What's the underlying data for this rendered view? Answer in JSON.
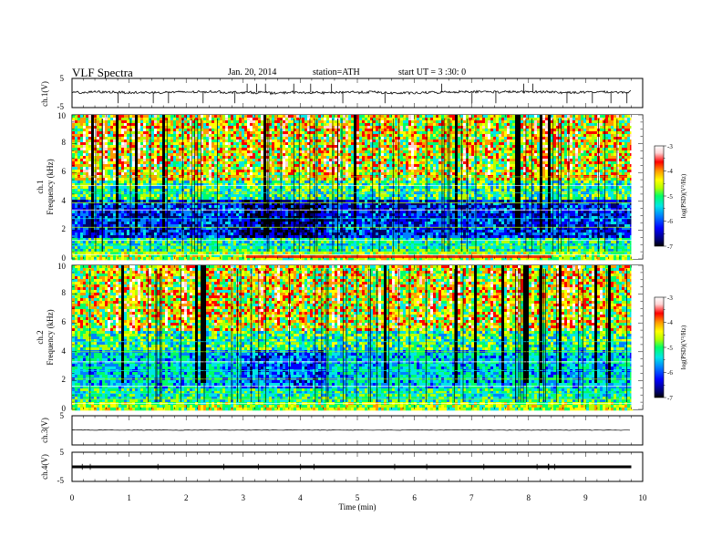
{
  "header": {
    "title": "VLF Spectra",
    "date": "Jan. 20, 2014",
    "station": "station=ATH",
    "start": "start UT =  3 :30: 0"
  },
  "colors": {
    "frame": "#000000",
    "trace": "#000000",
    "spectrogram_scale": [
      "#000000",
      "#00006e",
      "#0000ff",
      "#0080ff",
      "#00e6e6",
      "#00ff66",
      "#b4ff00",
      "#ffff00",
      "#ff9900",
      "#ff0000",
      "#ffd2d2",
      "#ffffff"
    ]
  },
  "chart_data": [
    {
      "type": "line",
      "panel": "ch1-waveform",
      "ylabel": "ch.1(V)",
      "ylim": [
        -5,
        5
      ],
      "y_ticks": [
        "5",
        "-5"
      ],
      "xlim": [
        0,
        10
      ],
      "trace_level": 0,
      "trace_extent_min": 9.8
    },
    {
      "type": "heatmap",
      "panel": "ch1-spectrogram",
      "ylabel_channel": "ch.1",
      "ylabel": "Frequency (kHz)",
      "ylim": [
        0,
        10
      ],
      "y_ticks": [
        "0",
        "2",
        "4",
        "6",
        "8",
        "10"
      ],
      "xlim": [
        0,
        10
      ],
      "extent_min": 9.8,
      "colorbar": {
        "label": "log(PSD)(V²/Hz)",
        "range": [
          -7,
          -3
        ],
        "ticks": [
          "-3",
          "-4",
          "-5",
          "-6",
          "-7"
        ]
      }
    },
    {
      "type": "heatmap",
      "panel": "ch2-spectrogram",
      "ylabel_channel": "ch.2",
      "ylabel": "Frequency (kHz)",
      "ylim": [
        0,
        10
      ],
      "y_ticks": [
        "0",
        "2",
        "4",
        "6",
        "8",
        "10"
      ],
      "xlim": [
        0,
        10
      ],
      "extent_min": 9.8,
      "colorbar": {
        "label": "log(PSD)(V²/Hz)",
        "range": [
          -7,
          -3
        ],
        "ticks": [
          "-3",
          "-4",
          "-5",
          "-6",
          "-7"
        ]
      }
    },
    {
      "type": "line",
      "panel": "ch3-waveform",
      "ylabel": "ch.3(V)",
      "ylim": [
        -5,
        5
      ],
      "y_ticks": [
        "5"
      ],
      "xlim": [
        0,
        10
      ],
      "trace_level": 0.1,
      "trace_extent_min": 9.8
    },
    {
      "type": "line",
      "panel": "ch4-waveform",
      "ylabel": "ch.4(V)",
      "ylim": [
        -5,
        5
      ],
      "y_ticks": [
        "5",
        "-5"
      ],
      "xlim": [
        0,
        10
      ],
      "trace_level": 0,
      "trace_extent_min": 9.8
    }
  ],
  "x_axis": {
    "label": "Time (min)",
    "range": [
      0,
      10
    ],
    "ticks": [
      "0",
      "1",
      "2",
      "3",
      "4",
      "5",
      "6",
      "7",
      "8",
      "9",
      "10"
    ]
  }
}
